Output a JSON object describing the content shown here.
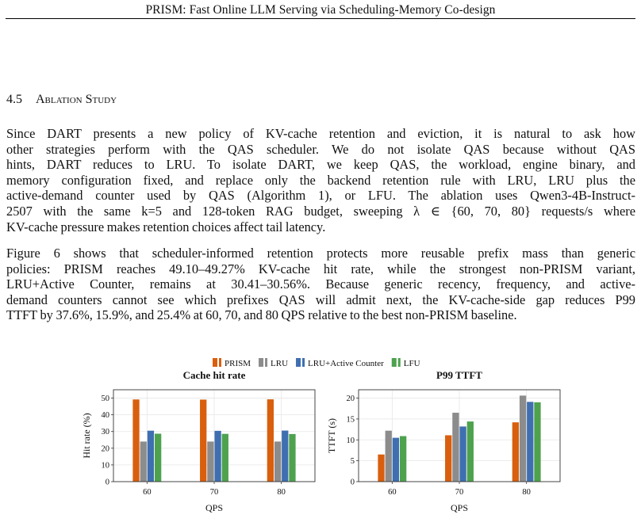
{
  "header": {
    "running_title": "PRISM: Fast Online LLM Serving via Scheduling-Memory Co-design"
  },
  "section": {
    "number": "4.5",
    "title": "Ablation Study"
  },
  "paragraphs": {
    "p1": [
      "Since DART presents a new policy of KV-cache retention and eviction, it is natural to ask how",
      "other strategies perform with the QAS scheduler.  We do not isolate QAS because without QAS",
      "hints, DART reduces to LRU. To isolate DART, we keep QAS, the workload, engine binary, and",
      "memory configuration fixed, and replace only the backend retention rule with LRU, LRU plus the",
      "active-demand counter used by QAS (Algorithm 1), or LFU. The ablation uses Qwen3-4B-Instruct-",
      "2507 with the same k=5 and 128-token RAG budget, sweeping λ ∈ {60, 70, 80} requests/s where",
      "KV-cache pressure makes retention choices affect tail latency."
    ],
    "p2": [
      "Figure 6 shows that scheduler-informed retention protects more reusable prefix mass than generic",
      "policies: PRISM reaches 49.10–49.27% KV-cache hit rate, while the strongest non-PRISM variant,",
      "LRU+Active Counter, remains at 30.41–30.56%.  Because generic recency, frequency, and active-",
      "demand counters cannot see which prefixes QAS will admit next, the KV-cache-side gap reduces P99",
      "TTFT by 37.6%, 15.9%, and 25.4% at 60, 70, and 80 QPS relative to the best non-PRISM baseline."
    ]
  },
  "legend": [
    "PRISM",
    "LRU",
    "LRU+Active Counter",
    "LFU"
  ],
  "colors": {
    "PRISM": "#d95f0e",
    "LRU": "#8c8c8c",
    "LRU+Active Counter": "#3f6fb0",
    "LFU": "#4ea24e"
  },
  "chart_data": [
    {
      "type": "bar",
      "title": "Cache hit rate",
      "xlabel": "QPS",
      "ylabel": "Hit rate (%)",
      "categories": [
        "60",
        "70",
        "80"
      ],
      "yticks": [
        "0",
        "10",
        "20",
        "30",
        "40",
        "50"
      ],
      "ylim": [
        0,
        55
      ],
      "grid": true,
      "legend_position": "top-center",
      "series": [
        {
          "name": "PRISM",
          "values": [
            49.2,
            49.1,
            49.27
          ]
        },
        {
          "name": "LRU",
          "values": [
            24.0,
            24.0,
            24.0
          ]
        },
        {
          "name": "LRU+Active Counter",
          "values": [
            30.5,
            30.41,
            30.56
          ]
        },
        {
          "name": "LFU",
          "values": [
            28.7,
            28.6,
            28.5
          ]
        }
      ]
    },
    {
      "type": "bar",
      "title": "P99 TTFT",
      "xlabel": "QPS",
      "ylabel": "TTFT (s)",
      "categories": [
        "60",
        "70",
        "80"
      ],
      "yticks": [
        "0",
        "5",
        "10",
        "15",
        "20"
      ],
      "ylim": [
        0,
        22
      ],
      "grid": true,
      "legend_position": "top-center",
      "series": [
        {
          "name": "PRISM",
          "values": [
            6.5,
            11.1,
            14.2
          ]
        },
        {
          "name": "LRU",
          "values": [
            12.2,
            16.5,
            20.6
          ]
        },
        {
          "name": "LRU+Active Counter",
          "values": [
            10.5,
            13.2,
            19.1
          ]
        },
        {
          "name": "LFU",
          "values": [
            10.9,
            14.4,
            19.0
          ]
        }
      ]
    }
  ]
}
